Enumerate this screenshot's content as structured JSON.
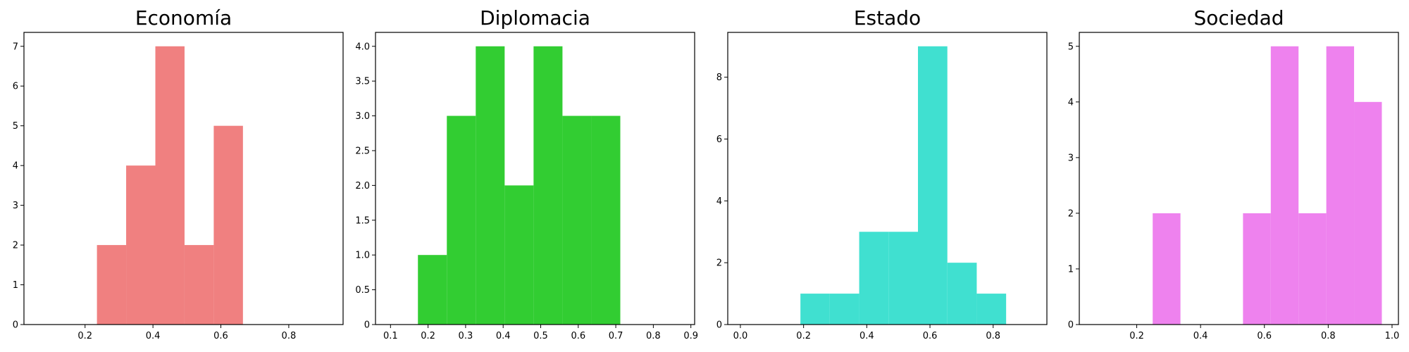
{
  "chart_data": [
    {
      "type": "bar",
      "title": "Economía",
      "color": "#F08080",
      "xlim": [
        0.02,
        0.96
      ],
      "ylim": [
        0,
        7.35
      ],
      "xticks": [
        0.2,
        0.4,
        0.6,
        0.8
      ],
      "yticks": [
        0,
        1,
        2,
        3,
        4,
        5,
        6,
        7
      ],
      "bins": [
        {
          "x0": 0.235,
          "x1": 0.321,
          "count": 2
        },
        {
          "x0": 0.321,
          "x1": 0.407,
          "count": 4
        },
        {
          "x0": 0.407,
          "x1": 0.493,
          "count": 7
        },
        {
          "x0": 0.493,
          "x1": 0.579,
          "count": 2
        },
        {
          "x0": 0.579,
          "x1": 0.665,
          "count": 5
        }
      ]
    },
    {
      "type": "bar",
      "title": "Diplomacia",
      "color": "#32CD32",
      "xlim": [
        0.06,
        0.91
      ],
      "ylim": [
        0,
        4.2
      ],
      "xticks": [
        0.1,
        0.2,
        0.3,
        0.4,
        0.5,
        0.6,
        0.7,
        0.8,
        0.9
      ],
      "yticks": [
        "0",
        "0.5",
        "1.0",
        "1.5",
        "2.0",
        "2.5",
        "3.0",
        "3.5",
        "4.0"
      ],
      "bins": [
        {
          "x0": 0.173,
          "x1": 0.25,
          "count": 1
        },
        {
          "x0": 0.25,
          "x1": 0.327,
          "count": 3
        },
        {
          "x0": 0.327,
          "x1": 0.404,
          "count": 4
        },
        {
          "x0": 0.404,
          "x1": 0.481,
          "count": 2
        },
        {
          "x0": 0.481,
          "x1": 0.558,
          "count": 4
        },
        {
          "x0": 0.558,
          "x1": 0.635,
          "count": 3
        },
        {
          "x0": 0.635,
          "x1": 0.712,
          "count": 3
        }
      ]
    },
    {
      "type": "bar",
      "title": "Estado",
      "color": "#40E0D0",
      "xlim": [
        -0.04,
        0.97
      ],
      "ylim": [
        0,
        9.45
      ],
      "xticks": [
        0.0,
        0.2,
        0.4,
        0.6,
        0.8
      ],
      "yticks": [
        0,
        2,
        4,
        6,
        8
      ],
      "bins": [
        {
          "x0": 0.19,
          "x1": 0.283,
          "count": 1
        },
        {
          "x0": 0.283,
          "x1": 0.376,
          "count": 1
        },
        {
          "x0": 0.376,
          "x1": 0.469,
          "count": 3
        },
        {
          "x0": 0.469,
          "x1": 0.562,
          "count": 3
        },
        {
          "x0": 0.562,
          "x1": 0.655,
          "count": 9
        },
        {
          "x0": 0.655,
          "x1": 0.748,
          "count": 2
        },
        {
          "x0": 0.748,
          "x1": 0.841,
          "count": 1
        }
      ]
    },
    {
      "type": "bar",
      "title": "Sociedad",
      "color": "#EE82EE",
      "xlim": [
        0.02,
        1.02
      ],
      "ylim": [
        0,
        5.25
      ],
      "xticks": [
        0.2,
        0.4,
        0.6,
        0.8,
        1.0
      ],
      "yticks": [
        0,
        1,
        2,
        3,
        4,
        5
      ],
      "bins": [
        {
          "x0": 0.25,
          "x1": 0.337,
          "count": 2
        },
        {
          "x0": 0.337,
          "x1": 0.424,
          "count": 0
        },
        {
          "x0": 0.424,
          "x1": 0.533,
          "count": 0
        },
        {
          "x0": 0.533,
          "x1": 0.62,
          "count": 2
        },
        {
          "x0": 0.62,
          "x1": 0.707,
          "count": 5
        },
        {
          "x0": 0.707,
          "x1": 0.794,
          "count": 2
        },
        {
          "x0": 0.794,
          "x1": 0.881,
          "count": 5
        },
        {
          "x0": 0.881,
          "x1": 0.968,
          "count": 4
        }
      ]
    }
  ]
}
